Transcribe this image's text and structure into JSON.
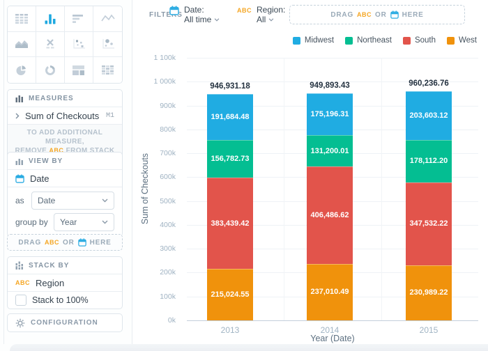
{
  "sidebar": {
    "chart_picker": {
      "types": [
        "table",
        "bar",
        "horizontal-bar",
        "line",
        "area",
        "kpi",
        "scatter",
        "bubble",
        "pie",
        "donut",
        "treemap",
        "pivot-table"
      ],
      "selected": "bar"
    },
    "measures": {
      "title": "MEASURES",
      "row": {
        "label": "Sum of Checkouts",
        "badge": "M1"
      },
      "hint": {
        "line1": "TO ADD ADDITIONAL MEASURE,",
        "line2_pre": "REMOVE",
        "line2_abc": "ABC",
        "line2_post": "FROM STACK BY"
      }
    },
    "view_by": {
      "title": "VIEW BY",
      "field": "Date",
      "as_label": "as",
      "as_value": "Date",
      "group_by_label": "group by",
      "group_by_value": "Year"
    },
    "drop_zone": {
      "drag": "DRAG",
      "abc": "ABC",
      "or": "OR",
      "here": "HERE"
    },
    "stack_by": {
      "title": "STACK BY",
      "abc": "ABC",
      "field": "Region",
      "stack_100_label": "Stack to 100%"
    },
    "configuration": {
      "title": "CONFIGURATION"
    }
  },
  "filters": {
    "label": "FILTERS",
    "date": {
      "label": "Date:",
      "value": "All time"
    },
    "region": {
      "abc": "ABC",
      "label": "Region:",
      "value": "All"
    },
    "drop_zone": {
      "drag": "DRAG",
      "abc": "ABC",
      "or": "OR",
      "here": "HERE"
    }
  },
  "chart_data": {
    "type": "bar",
    "stacked": true,
    "categories": [
      "2013",
      "2014",
      "2015"
    ],
    "series": [
      {
        "name": "Midwest",
        "color": "#20ACE2",
        "values": [
          191684.48,
          175196.31,
          203603.12
        ],
        "labels": [
          "191,684.48",
          "175,196.31",
          "203,603.12"
        ]
      },
      {
        "name": "Northeast",
        "color": "#04BE92",
        "values": [
          156782.73,
          131200.01,
          178112.2
        ],
        "labels": [
          "156,782.73",
          "131,200.01",
          "178,112.20"
        ]
      },
      {
        "name": "South",
        "color": "#E2544B",
        "values": [
          383439.42,
          406486.62,
          347532.22
        ],
        "labels": [
          "383,439.42",
          "406,486.62",
          "347,532.22"
        ]
      },
      {
        "name": "West",
        "color": "#F0920C",
        "values": [
          215024.55,
          237010.49,
          230989.22
        ],
        "labels": [
          "215,024.55",
          "237,010.49",
          "230,989.22"
        ]
      }
    ],
    "totals": {
      "values": [
        946931.18,
        949893.43,
        960236.76
      ],
      "labels": [
        "946,931.18",
        "949,893.43",
        "960,236.76"
      ]
    },
    "xlabel": "Year (Date)",
    "ylabel": "Sum of Checkouts",
    "ylim": [
      0,
      1100000
    ],
    "ytick_step": 100000,
    "ytick_labels": [
      "0k",
      "100k",
      "200k",
      "300k",
      "400k",
      "500k",
      "600k",
      "700k",
      "800k",
      "900k",
      "1 000k",
      "1 100k"
    ],
    "legend_position": "top-right",
    "grid": true
  }
}
